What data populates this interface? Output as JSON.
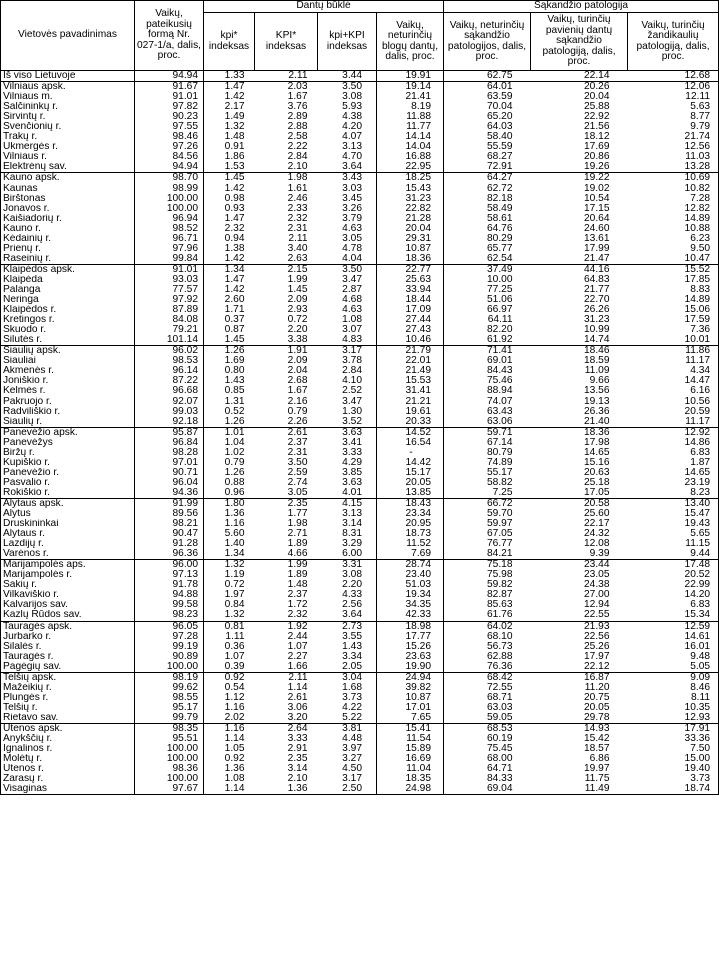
{
  "headers": {
    "name": "Vietovės pavadinimas",
    "col1": "Vaikų, pateikusių formą Nr. 027-1/a, dalis, proc.",
    "group_teeth": "Dantų būklė",
    "group_bite": "Sąkandžio patologija",
    "kpi": "kpi* indeksas",
    "KPI": "KPI* indeksas",
    "kpi_KPI": "kpi+KPI indeksas",
    "bad_teeth": "Vaikų, neturinčių blogų dantų, dalis, proc.",
    "no_bite": "Vaikų, neturinčių sąkandžio patologijos, dalis, proc.",
    "single_bite": "Vaikų, turinčių pavienių dantų sąkandžio patologiją, dalis, proc.",
    "jaw_bite": "Vaikų, turinčių žandikaulių patologiją, dalis, proc."
  },
  "rows": [
    {
      "name": "Iš viso Lietuvoje",
      "v": [
        "94.94",
        "1.33",
        "2.11",
        "3.44",
        "19.91",
        "62.75",
        "22.14",
        "12.68"
      ],
      "grp": false
    },
    {
      "name": "Vilniaus apsk.",
      "v": [
        "91.67",
        "1.47",
        "2.03",
        "3.50",
        "19.14",
        "64.01",
        "20.26",
        "12.06"
      ],
      "grp": true
    },
    {
      "name": "Vilniaus m.",
      "v": [
        "91.01",
        "1.42",
        "1.67",
        "3.08",
        "21.41",
        "63.59",
        "20.04",
        "12.11"
      ],
      "grp": false
    },
    {
      "name": "Šalčininkų r.",
      "v": [
        "97.82",
        "2.17",
        "3.76",
        "5.93",
        "8.19",
        "70.04",
        "25.88",
        "5.63"
      ],
      "grp": false
    },
    {
      "name": "Širvintų r.",
      "v": [
        "90.23",
        "1.49",
        "2.89",
        "4.38",
        "11.88",
        "65.20",
        "22.92",
        "8.77"
      ],
      "grp": false
    },
    {
      "name": "Švenčionių r.",
      "v": [
        "97.55",
        "1.32",
        "2.88",
        "4.20",
        "11.77",
        "64.03",
        "21.56",
        "9.79"
      ],
      "grp": false
    },
    {
      "name": "Trakų r.",
      "v": [
        "98.46",
        "1.48",
        "2.58",
        "4.07",
        "14.14",
        "58.40",
        "18.12",
        "21.74"
      ],
      "grp": false
    },
    {
      "name": "Ukmergės r.",
      "v": [
        "97.26",
        "0.91",
        "2.22",
        "3.13",
        "14.04",
        "55.59",
        "17.69",
        "12.56"
      ],
      "grp": false
    },
    {
      "name": "Vilniaus r.",
      "v": [
        "84.56",
        "1.86",
        "2.84",
        "4.70",
        "16.88",
        "68.27",
        "20.86",
        "11.03"
      ],
      "grp": false
    },
    {
      "name": "Elektrėnų sav.",
      "v": [
        "94.94",
        "1.53",
        "2.10",
        "3.64",
        "22.95",
        "72.91",
        "19.26",
        "13.28"
      ],
      "grp": false
    },
    {
      "name": "Kauno apsk.",
      "v": [
        "98.70",
        "1.45",
        "1.98",
        "3.43",
        "18.25",
        "64.27",
        "19.22",
        "10.69"
      ],
      "grp": true
    },
    {
      "name": "Kaunas",
      "v": [
        "98.99",
        "1.42",
        "1.61",
        "3.03",
        "15.43",
        "62.72",
        "19.02",
        "10.82"
      ],
      "grp": false
    },
    {
      "name": "Birštonas",
      "v": [
        "100.00",
        "0.98",
        "2.46",
        "3.45",
        "31.23",
        "82.18",
        "10.54",
        "7.28"
      ],
      "grp": false
    },
    {
      "name": "Jonavos r.",
      "v": [
        "100.00",
        "0.93",
        "2.33",
        "3.26",
        "22.82",
        "58.49",
        "17.15",
        "12.82"
      ],
      "grp": false
    },
    {
      "name": "Kaišiadorių r.",
      "v": [
        "96.94",
        "1.47",
        "2.32",
        "3.79",
        "21.28",
        "58.61",
        "20.64",
        "14.89"
      ],
      "grp": false
    },
    {
      "name": "Kauno r.",
      "v": [
        "98.52",
        "2.32",
        "2.31",
        "4.63",
        "20.04",
        "64.76",
        "24.60",
        "10.88"
      ],
      "grp": false
    },
    {
      "name": "Kėdainių r.",
      "v": [
        "96.71",
        "0.94",
        "2.11",
        "3.05",
        "29.31",
        "80.29",
        "13.61",
        "6.23"
      ],
      "grp": false
    },
    {
      "name": "Prienų r.",
      "v": [
        "97.96",
        "1.38",
        "3.40",
        "4.78",
        "10.87",
        "65.77",
        "17.99",
        "9.50"
      ],
      "grp": false
    },
    {
      "name": "Raseinių r.",
      "v": [
        "99.84",
        "1.42",
        "2.63",
        "4.04",
        "18.36",
        "62.54",
        "21.47",
        "10.47"
      ],
      "grp": false
    },
    {
      "name": "Klaipėdos apsk.",
      "v": [
        "91.01",
        "1.34",
        "2.15",
        "3.50",
        "22.77",
        "37.49",
        "44.16",
        "15.52"
      ],
      "grp": true
    },
    {
      "name": "Klaipėda",
      "v": [
        "93.03",
        "1.47",
        "1.99",
        "3.47",
        "25.63",
        "10.00",
        "64.83",
        "17.85"
      ],
      "grp": false
    },
    {
      "name": "Palanga",
      "v": [
        "77.57",
        "1.42",
        "1.45",
        "2.87",
        "33.94",
        "77.25",
        "21.77",
        "8.83"
      ],
      "grp": false
    },
    {
      "name": "Neringa",
      "v": [
        "97.92",
        "2.60",
        "2.09",
        "4.68",
        "18.44",
        "51.06",
        "22.70",
        "14.89"
      ],
      "grp": false
    },
    {
      "name": "Klaipėdos r.",
      "v": [
        "87.89",
        "1.71",
        "2.93",
        "4.63",
        "17.09",
        "66.97",
        "26.26",
        "15.06"
      ],
      "grp": false
    },
    {
      "name": "Kretingos r.",
      "v": [
        "84.08",
        "0.37",
        "0.72",
        "1.08",
        "27.44",
        "64.11",
        "31.23",
        "17.59"
      ],
      "grp": false
    },
    {
      "name": "Skuodo r.",
      "v": [
        "79.21",
        "0.87",
        "2.20",
        "3.07",
        "27.43",
        "82.20",
        "10.99",
        "7.36"
      ],
      "grp": false
    },
    {
      "name": "Šilutės r.",
      "v": [
        "101.14",
        "1.45",
        "3.38",
        "4.83",
        "10.46",
        "61.92",
        "14.74",
        "10.01"
      ],
      "grp": false
    },
    {
      "name": "Šiaulių apsk.",
      "v": [
        "96.02",
        "1.26",
        "1.91",
        "3.17",
        "21.79",
        "71.41",
        "18.46",
        "11.86"
      ],
      "grp": true
    },
    {
      "name": "Šiauliai",
      "v": [
        "98.53",
        "1.69",
        "2.09",
        "3.78",
        "22.01",
        "69.01",
        "18.59",
        "11.17"
      ],
      "grp": false
    },
    {
      "name": "Akmenės r.",
      "v": [
        "96.14",
        "0.80",
        "2.04",
        "2.84",
        "21.49",
        "84.43",
        "11.09",
        "4.34"
      ],
      "grp": false
    },
    {
      "name": "Joniškio r.",
      "v": [
        "87.22",
        "1.43",
        "2.68",
        "4.10",
        "15.53",
        "75.46",
        "9.66",
        "14.47"
      ],
      "grp": false
    },
    {
      "name": "Kelmės r.",
      "v": [
        "96.68",
        "0.85",
        "1.67",
        "2.52",
        "31.41",
        "88.94",
        "13.56",
        "6.16"
      ],
      "grp": false
    },
    {
      "name": "Pakruojo r.",
      "v": [
        "92.07",
        "1.31",
        "2.16",
        "3.47",
        "21.21",
        "74.07",
        "19.13",
        "10.56"
      ],
      "grp": false
    },
    {
      "name": "Radviliškio r.",
      "v": [
        "99.03",
        "0.52",
        "0.79",
        "1.30",
        "19.61",
        "63.43",
        "26.36",
        "20.59"
      ],
      "grp": false
    },
    {
      "name": "Šiaulių r.",
      "v": [
        "92.18",
        "1.26",
        "2.26",
        "3.52",
        "20.33",
        "63.06",
        "21.40",
        "11.17"
      ],
      "grp": false
    },
    {
      "name": "Panevėžio apsk.",
      "v": [
        "95.87",
        "1.01",
        "2.61",
        "3.63",
        "14.52",
        "59.71",
        "18.36",
        "12.92"
      ],
      "grp": true
    },
    {
      "name": "Panevėžys",
      "v": [
        "96.84",
        "1.04",
        "2.37",
        "3.41",
        "16.54",
        "67.14",
        "17.98",
        "14.86"
      ],
      "grp": false
    },
    {
      "name": "Biržų r.",
      "v": [
        "98.28",
        "1.02",
        "2.31",
        "3.33",
        "-",
        "80.79",
        "14.65",
        "6.83"
      ],
      "grp": false
    },
    {
      "name": "Kupiškio r.",
      "v": [
        "97.01",
        "0.79",
        "3.50",
        "4.29",
        "14.42",
        "74.89",
        "15.16",
        "1.87"
      ],
      "grp": false
    },
    {
      "name": "Panevėžio r.",
      "v": [
        "90.71",
        "1.26",
        "2.59",
        "3.85",
        "15.17",
        "55.17",
        "20.63",
        "14.65"
      ],
      "grp": false
    },
    {
      "name": "Pasvalio r.",
      "v": [
        "96.04",
        "0.88",
        "2.74",
        "3.63",
        "20.05",
        "58.82",
        "25.18",
        "23.19"
      ],
      "grp": false
    },
    {
      "name": "Rokiškio r.",
      "v": [
        "94.36",
        "0.96",
        "3.05",
        "4.01",
        "13.85",
        "7.25",
        "17.05",
        "8.23"
      ],
      "grp": false
    },
    {
      "name": "Alytaus apsk.",
      "v": [
        "91.99",
        "1.80",
        "2.35",
        "4.15",
        "18.43",
        "66.72",
        "20.58",
        "13.40"
      ],
      "grp": true
    },
    {
      "name": "Alytus",
      "v": [
        "89.56",
        "1.36",
        "1.77",
        "3.13",
        "23.34",
        "59.70",
        "25.60",
        "15.47"
      ],
      "grp": false
    },
    {
      "name": "Druskininkai",
      "v": [
        "98.21",
        "1.16",
        "1.98",
        "3.14",
        "20.95",
        "59.97",
        "22.17",
        "19.43"
      ],
      "grp": false
    },
    {
      "name": "Alytaus r.",
      "v": [
        "90.47",
        "5.60",
        "2.71",
        "8.31",
        "18.73",
        "67.05",
        "24.32",
        "5.65"
      ],
      "grp": false
    },
    {
      "name": "Lazdijų r.",
      "v": [
        "91.28",
        "1.40",
        "1.89",
        "3.29",
        "11.52",
        "76.77",
        "12.08",
        "11.15"
      ],
      "grp": false
    },
    {
      "name": "Varėnos r.",
      "v": [
        "96.36",
        "1.34",
        "4.66",
        "6.00",
        "7.69",
        "84.21",
        "9.39",
        "9.44"
      ],
      "grp": false
    },
    {
      "name": "Marijampolės aps.",
      "v": [
        "96.00",
        "1.32",
        "1.99",
        "3.31",
        "28.74",
        "75.18",
        "23.44",
        "17.48"
      ],
      "grp": true
    },
    {
      "name": "Marijampolės r.",
      "v": [
        "97.13",
        "1.19",
        "1.89",
        "3.08",
        "23.40",
        "75.98",
        "23.05",
        "20.52"
      ],
      "grp": false
    },
    {
      "name": "Šakių r.",
      "v": [
        "91.78",
        "0.72",
        "1.48",
        "2.20",
        "51.03",
        "59.82",
        "24.38",
        "22.99"
      ],
      "grp": false
    },
    {
      "name": "Vilkaviškio r.",
      "v": [
        "94.88",
        "1.97",
        "2.37",
        "4.33",
        "19.34",
        "82.87",
        "27.00",
        "14.20"
      ],
      "grp": false
    },
    {
      "name": "Kalvarijos sav.",
      "v": [
        "99.58",
        "0.84",
        "1.72",
        "2.56",
        "34.35",
        "85.63",
        "12.94",
        "6.83"
      ],
      "grp": false
    },
    {
      "name": "Kazlų Rūdos sav.",
      "v": [
        "98.23",
        "1.32",
        "2.32",
        "3.64",
        "42.33",
        "61.76",
        "22.55",
        "15.34"
      ],
      "grp": false
    },
    {
      "name": "Tauragės apsk.",
      "v": [
        "96.05",
        "0.81",
        "1.92",
        "2.73",
        "18.98",
        "64.02",
        "21.93",
        "12.59"
      ],
      "grp": true
    },
    {
      "name": "Jurbarko r.",
      "v": [
        "97.28",
        "1.11",
        "2.44",
        "3.55",
        "17.77",
        "68.10",
        "22.56",
        "14.61"
      ],
      "grp": false
    },
    {
      "name": "Šilalės r.",
      "v": [
        "99.19",
        "0.36",
        "1.07",
        "1.43",
        "15.26",
        "56.73",
        "25.26",
        "16.01"
      ],
      "grp": false
    },
    {
      "name": "Tauragės r.",
      "v": [
        "90.89",
        "1.07",
        "2.27",
        "3.34",
        "23.63",
        "62.88",
        "17.97",
        "9.48"
      ],
      "grp": false
    },
    {
      "name": "Pagėgių sav.",
      "v": [
        "100.00",
        "0.39",
        "1.66",
        "2.05",
        "19.90",
        "76.36",
        "22.12",
        "5.05"
      ],
      "grp": false
    },
    {
      "name": "Telšių apsk.",
      "v": [
        "98.19",
        "0.92",
        "2.11",
        "3.04",
        "24.94",
        "68.42",
        "16.87",
        "9.09"
      ],
      "grp": true
    },
    {
      "name": "Mažeikių r.",
      "v": [
        "99.62",
        "0.54",
        "1.14",
        "1.68",
        "39.82",
        "72.55",
        "11.20",
        "8.46"
      ],
      "grp": false
    },
    {
      "name": "Plungės r.",
      "v": [
        "98.55",
        "1.12",
        "2.61",
        "3.73",
        "10.87",
        "68.71",
        "20.75",
        "8.11"
      ],
      "grp": false
    },
    {
      "name": "Telšių r.",
      "v": [
        "95.17",
        "1.16",
        "3.06",
        "4.22",
        "17.01",
        "63.03",
        "20.05",
        "10.35"
      ],
      "grp": false
    },
    {
      "name": "Rietavo sav.",
      "v": [
        "99.79",
        "2.02",
        "3.20",
        "5.22",
        "7.65",
        "59.05",
        "29.78",
        "12.93"
      ],
      "grp": false
    },
    {
      "name": "Utenos apsk.",
      "v": [
        "98.35",
        "1.16",
        "2.64",
        "3.81",
        "15.41",
        "68.53",
        "14.93",
        "17.91"
      ],
      "grp": true
    },
    {
      "name": "Anykščių r.",
      "v": [
        "95.51",
        "1.14",
        "3.33",
        "4.48",
        "11.54",
        "60.19",
        "15.42",
        "33.36"
      ],
      "grp": false
    },
    {
      "name": "Ignalinos r.",
      "v": [
        "100.00",
        "1.05",
        "2.91",
        "3.97",
        "15.89",
        "75.45",
        "18.57",
        "7.50"
      ],
      "grp": false
    },
    {
      "name": "Molėtų r.",
      "v": [
        "100.00",
        "0.92",
        "2.35",
        "3.27",
        "16.69",
        "68.00",
        "6.86",
        "15.00"
      ],
      "grp": false
    },
    {
      "name": "Utenos r.",
      "v": [
        "98.36",
        "1.36",
        "3.14",
        "4.50",
        "11.04",
        "64.71",
        "19.97",
        "19.40"
      ],
      "grp": false
    },
    {
      "name": "Zarasų r.",
      "v": [
        "100.00",
        "1.08",
        "2.10",
        "3.17",
        "18.35",
        "84.33",
        "11.75",
        "3.73"
      ],
      "grp": false
    },
    {
      "name": "Visaginas",
      "v": [
        "97.67",
        "1.14",
        "1.36",
        "2.50",
        "24.98",
        "69.04",
        "11.49",
        "18.74"
      ],
      "grp": false
    }
  ]
}
